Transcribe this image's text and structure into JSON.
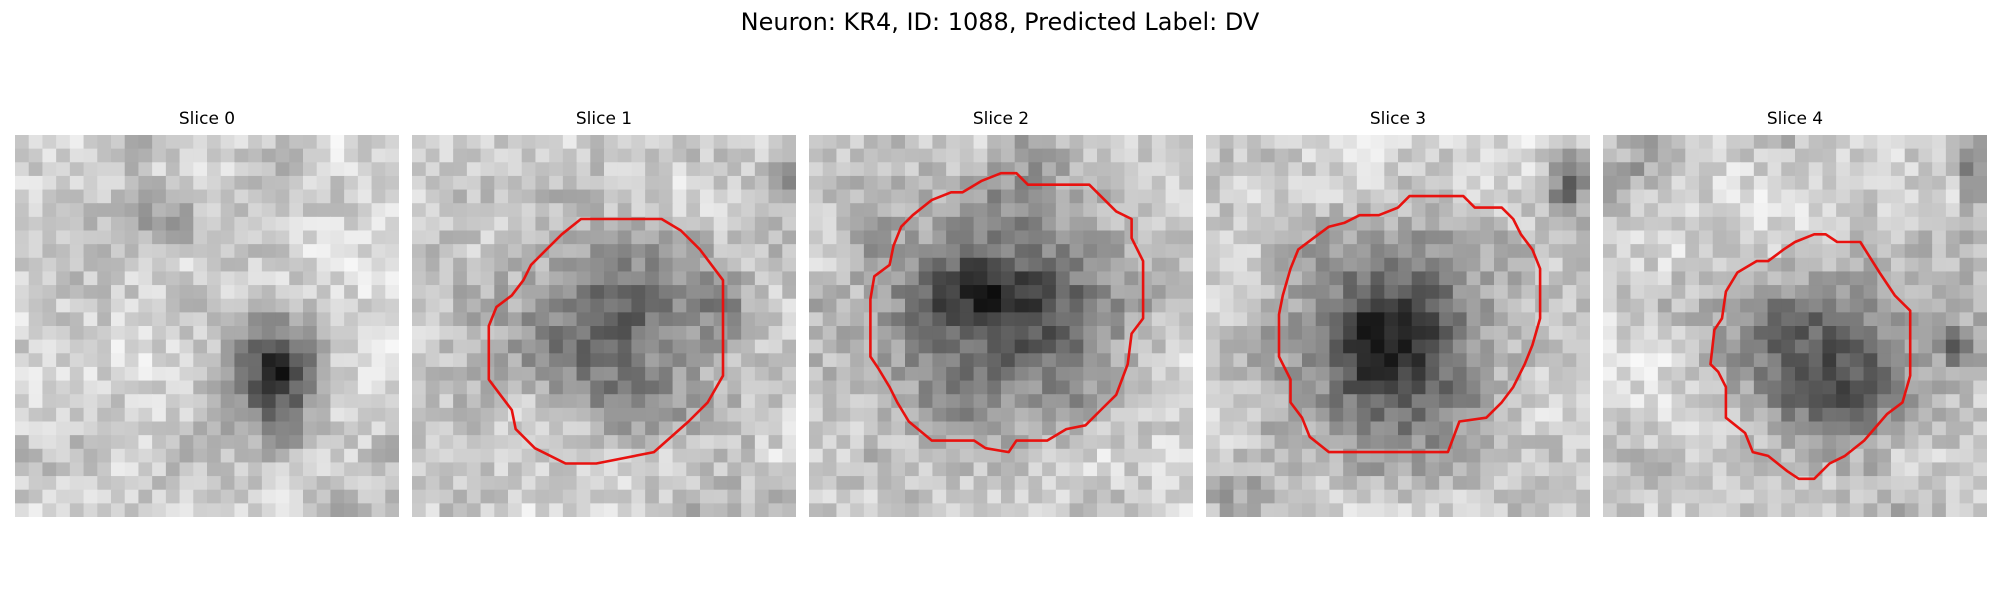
{
  "figure": {
    "title": "Neuron: KR4, ID: 1088, Predicted Label: DV"
  },
  "panels": [
    {
      "title": "Slice 0",
      "has_contour": false
    },
    {
      "title": "Slice 1",
      "has_contour": true
    },
    {
      "title": "Slice 2",
      "has_contour": true
    },
    {
      "title": "Slice 3",
      "has_contour": true
    },
    {
      "title": "Slice 4",
      "has_contour": true
    }
  ],
  "style": {
    "contour_color": "#e8120f",
    "colormap": "grayscale"
  }
}
